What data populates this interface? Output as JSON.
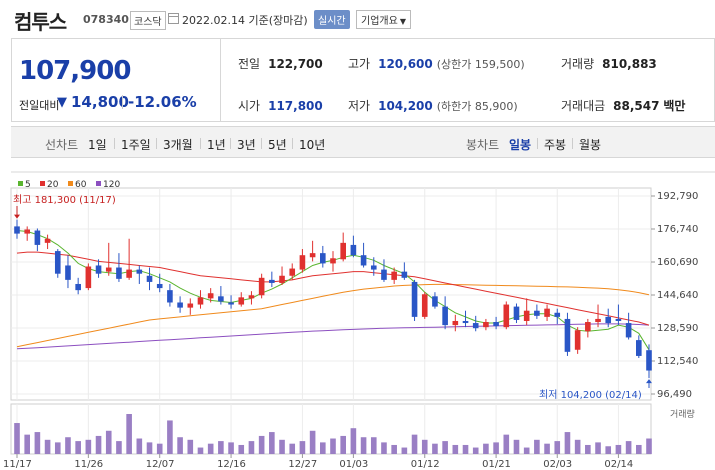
{
  "header": {
    "title": "컴투스",
    "code": "078340",
    "market": "코스닥",
    "date": "2022.02.14",
    "date_suffix": "기준(장마감)",
    "realtime_label": "실시간",
    "company_button": "기업개요"
  },
  "summary": {
    "price": "107,900",
    "change_label": "전일대비",
    "change_value": "14,800",
    "change_pct": "-12.06%",
    "prev_close": {
      "label": "전일",
      "value": "122,700"
    },
    "high": {
      "label": "고가",
      "value": "120,600",
      "sub": "(상한가 159,500)"
    },
    "volume": {
      "label": "거래량",
      "value": "810,883"
    },
    "open": {
      "label": "시가",
      "value": "117,800"
    },
    "low": {
      "label": "저가",
      "value": "104,200",
      "sub": "(하한가 85,900)"
    },
    "amount": {
      "label": "거래대금",
      "value": "88,547",
      "unit": "백만"
    }
  },
  "periodbar": {
    "line_label": "선차트",
    "line_periods": [
      "1일",
      "1주일",
      "3개월",
      "1년",
      "3년",
      "5년",
      "10년"
    ],
    "candle_label": "봉차트",
    "candle_periods": [
      "일봉",
      "주봉",
      "월봉"
    ],
    "active_candle": "일봉"
  },
  "colors": {
    "up": "#e0312f",
    "down": "#2a56c6",
    "ma5": "#5ab52f",
    "ma20": "#e0312f",
    "ma60": "#f08a1c",
    "ma120": "#8c4fc0",
    "volume": "#9a7fc4"
  },
  "chart_data": {
    "type": "candlestick",
    "legend": [
      {
        "name": "5",
        "color": "#5ab52f"
      },
      {
        "name": "20",
        "color": "#e0312f"
      },
      {
        "name": "60",
        "color": "#f08a1c"
      },
      {
        "name": "120",
        "color": "#8c4fc0"
      }
    ],
    "y_ticks": [
      192790,
      176740,
      160690,
      144640,
      128590,
      112540,
      96490
    ],
    "y_tick_labels": [
      "192,790",
      "176,740",
      "160,690",
      "144,640",
      "128,590",
      "112,540",
      "96,490"
    ],
    "ylim": [
      96490,
      192790
    ],
    "x_ticks": [
      {
        "label": "11/17",
        "index": 0
      },
      {
        "label": "11/26",
        "index": 7
      },
      {
        "label": "12/07",
        "index": 14
      },
      {
        "label": "12/16",
        "index": 21
      },
      {
        "label": "12/27",
        "index": 28
      },
      {
        "label": "01/03",
        "index": 33
      },
      {
        "label": "01/12",
        "index": 40
      },
      {
        "label": "01/21",
        "index": 47
      },
      {
        "label": "02/03",
        "index": 53
      },
      {
        "label": "02/14",
        "index": 59
      }
    ],
    "max_annotation": "최고 181,300 (11/17)",
    "min_annotation": "최저 104,200 (02/14)",
    "volume_label": "거래량",
    "candles": [
      [
        178000,
        181300,
        172000,
        174500
      ],
      [
        174500,
        178000,
        171000,
        176500
      ],
      [
        176000,
        177000,
        166000,
        169000
      ],
      [
        170000,
        174000,
        167000,
        172000
      ],
      [
        166000,
        167000,
        153000,
        155000
      ],
      [
        159000,
        164000,
        148000,
        152000
      ],
      [
        150000,
        153000,
        145000,
        147000
      ],
      [
        148000,
        160000,
        147000,
        158500
      ],
      [
        159000,
        162000,
        153000,
        155000
      ],
      [
        156000,
        170000,
        154000,
        158000
      ],
      [
        158000,
        165000,
        151000,
        152500
      ],
      [
        153000,
        172000,
        152000,
        157000
      ],
      [
        157000,
        159000,
        150000,
        155000
      ],
      [
        154000,
        158000,
        147000,
        151000
      ],
      [
        150000,
        155000,
        146000,
        148000
      ],
      [
        147000,
        150000,
        139000,
        141000
      ],
      [
        141000,
        144000,
        136000,
        138500
      ],
      [
        138500,
        143000,
        135000,
        140500
      ],
      [
        140000,
        147000,
        138000,
        143500
      ],
      [
        143000,
        148000,
        141000,
        145500
      ],
      [
        144000,
        149000,
        140000,
        141500
      ],
      [
        141000,
        144500,
        138000,
        140000
      ],
      [
        140000,
        146000,
        139000,
        143500
      ],
      [
        143000,
        146500,
        140000,
        144500
      ],
      [
        144500,
        155000,
        143000,
        153000
      ],
      [
        152000,
        156000,
        148500,
        150500
      ],
      [
        150500,
        158500,
        149500,
        154000
      ],
      [
        154000,
        160000,
        152000,
        157500
      ],
      [
        157000,
        167000,
        155500,
        164000
      ],
      [
        163000,
        171000,
        161000,
        165000
      ],
      [
        165000,
        168500,
        158000,
        160000
      ],
      [
        160000,
        166000,
        156000,
        162500
      ],
      [
        162000,
        175000,
        161000,
        170000
      ],
      [
        169000,
        173500,
        163000,
        164000
      ],
      [
        164000,
        170000,
        158000,
        159000
      ],
      [
        159000,
        163000,
        154000,
        157000
      ],
      [
        157000,
        162000,
        151000,
        152000
      ],
      [
        152000,
        158000,
        150000,
        156000
      ],
      [
        156000,
        160500,
        152000,
        153000
      ],
      [
        151000,
        152000,
        132000,
        134000
      ],
      [
        134000,
        146000,
        133000,
        145000
      ],
      [
        144000,
        146000,
        138000,
        139000
      ],
      [
        139000,
        144000,
        128000,
        130000
      ],
      [
        130000,
        135000,
        127000,
        132000
      ],
      [
        132000,
        137000,
        129000,
        131000
      ],
      [
        131000,
        134500,
        127000,
        128500
      ],
      [
        129000,
        133000,
        127500,
        131500
      ],
      [
        131500,
        134000,
        128000,
        129500
      ],
      [
        129000,
        141500,
        128000,
        140000
      ],
      [
        139000,
        140500,
        131000,
        132500
      ],
      [
        132000,
        143000,
        130000,
        137000
      ],
      [
        137000,
        140000,
        133000,
        134500
      ],
      [
        134000,
        140000,
        132000,
        138000
      ],
      [
        136000,
        138000,
        130500,
        134000
      ],
      [
        133000,
        136000,
        115000,
        117000
      ],
      [
        118000,
        129000,
        116000,
        127500
      ],
      [
        127000,
        133000,
        124000,
        131500
      ],
      [
        131500,
        140000,
        129000,
        133000
      ],
      [
        134000,
        138000,
        129000,
        131000
      ],
      [
        133000,
        140000,
        130000,
        132000
      ],
      [
        131000,
        136000,
        123000,
        124000
      ],
      [
        122700,
        125000,
        114000,
        115000
      ],
      [
        117800,
        120600,
        104200,
        107900
      ]
    ],
    "volume": [
      48,
      30,
      34,
      22,
      18,
      26,
      20,
      22,
      28,
      36,
      20,
      62,
      24,
      18,
      16,
      52,
      26,
      22,
      10,
      16,
      20,
      18,
      14,
      20,
      28,
      34,
      22,
      16,
      20,
      36,
      18,
      24,
      28,
      40,
      26,
      26,
      18,
      14,
      10,
      30,
      22,
      16,
      20,
      14,
      14,
      10,
      16,
      18,
      30,
      22,
      10,
      22,
      16,
      20,
      34,
      22,
      14,
      18,
      12,
      14,
      20,
      14,
      24
    ],
    "ma5": [
      176000,
      175500,
      174000,
      172000,
      169000,
      165000,
      160000,
      157500,
      156000,
      155500,
      155000,
      156000,
      156500,
      155000,
      153000,
      151000,
      148000,
      145500,
      143500,
      142000,
      141500,
      141000,
      142000,
      143000,
      145500,
      147500,
      150000,
      153000,
      156000,
      159000,
      160500,
      161500,
      163000,
      164000,
      163000,
      161500,
      159000,
      157000,
      155000,
      151000,
      146000,
      142000,
      139000,
      136000,
      134000,
      132000,
      131000,
      131000,
      132500,
      134000,
      135000,
      135500,
      135500,
      134000,
      130000,
      127500,
      127000,
      127500,
      128000,
      130000,
      129000,
      126000,
      118000
    ],
    "ma20": [
      165000,
      165500,
      165500,
      165000,
      164500,
      164000,
      163000,
      162000,
      161000,
      160500,
      160000,
      159500,
      159000,
      158500,
      158000,
      157000,
      156000,
      155000,
      154000,
      153500,
      153000,
      152500,
      152000,
      151500,
      151000,
      151000,
      151500,
      152000,
      153000,
      154000,
      154500,
      155000,
      155500,
      156000,
      156000,
      155500,
      155000,
      154500,
      154000,
      153500,
      152500,
      151500,
      150500,
      149500,
      148500,
      147500,
      146500,
      145500,
      144500,
      143500,
      142500,
      141500,
      140500,
      139500,
      138500,
      137500,
      136500,
      135500,
      134500,
      133500,
      132500,
      131500,
      130000
    ],
    "ma60": [
      119500,
      120500,
      121500,
      122500,
      123500,
      124500,
      125500,
      126500,
      127500,
      128500,
      129500,
      130500,
      131500,
      132500,
      133000,
      133500,
      134000,
      134500,
      135000,
      135500,
      136000,
      136500,
      137000,
      137500,
      138000,
      139000,
      140000,
      141000,
      142000,
      143000,
      144000,
      145000,
      146000,
      146800,
      147500,
      148000,
      148500,
      149000,
      149300,
      149500,
      149700,
      149800,
      149800,
      149700,
      149600,
      149500,
      149400,
      149300,
      149200,
      149100,
      149000,
      148900,
      148800,
      148700,
      148600,
      148400,
      148200,
      148000,
      147700,
      147200,
      146600,
      145800,
      144800
    ],
    "ma120": [
      118500,
      118700,
      119000,
      119300,
      119600,
      119900,
      120200,
      120500,
      120800,
      121100,
      121400,
      121700,
      122000,
      122300,
      122600,
      122900,
      123200,
      123500,
      123800,
      124100,
      124400,
      124700,
      125000,
      125300,
      125600,
      125900,
      126200,
      126500,
      126800,
      127100,
      127300,
      127500,
      127700,
      127900,
      128100,
      128300,
      128500,
      128600,
      128700,
      128800,
      128900,
      129000,
      129100,
      129200,
      129300,
      129400,
      129500,
      129600,
      129700,
      129800,
      129900,
      130000,
      130100,
      130200,
      130300,
      130400,
      130500,
      130600,
      130600,
      130600,
      130500,
      130300,
      130000
    ]
  }
}
